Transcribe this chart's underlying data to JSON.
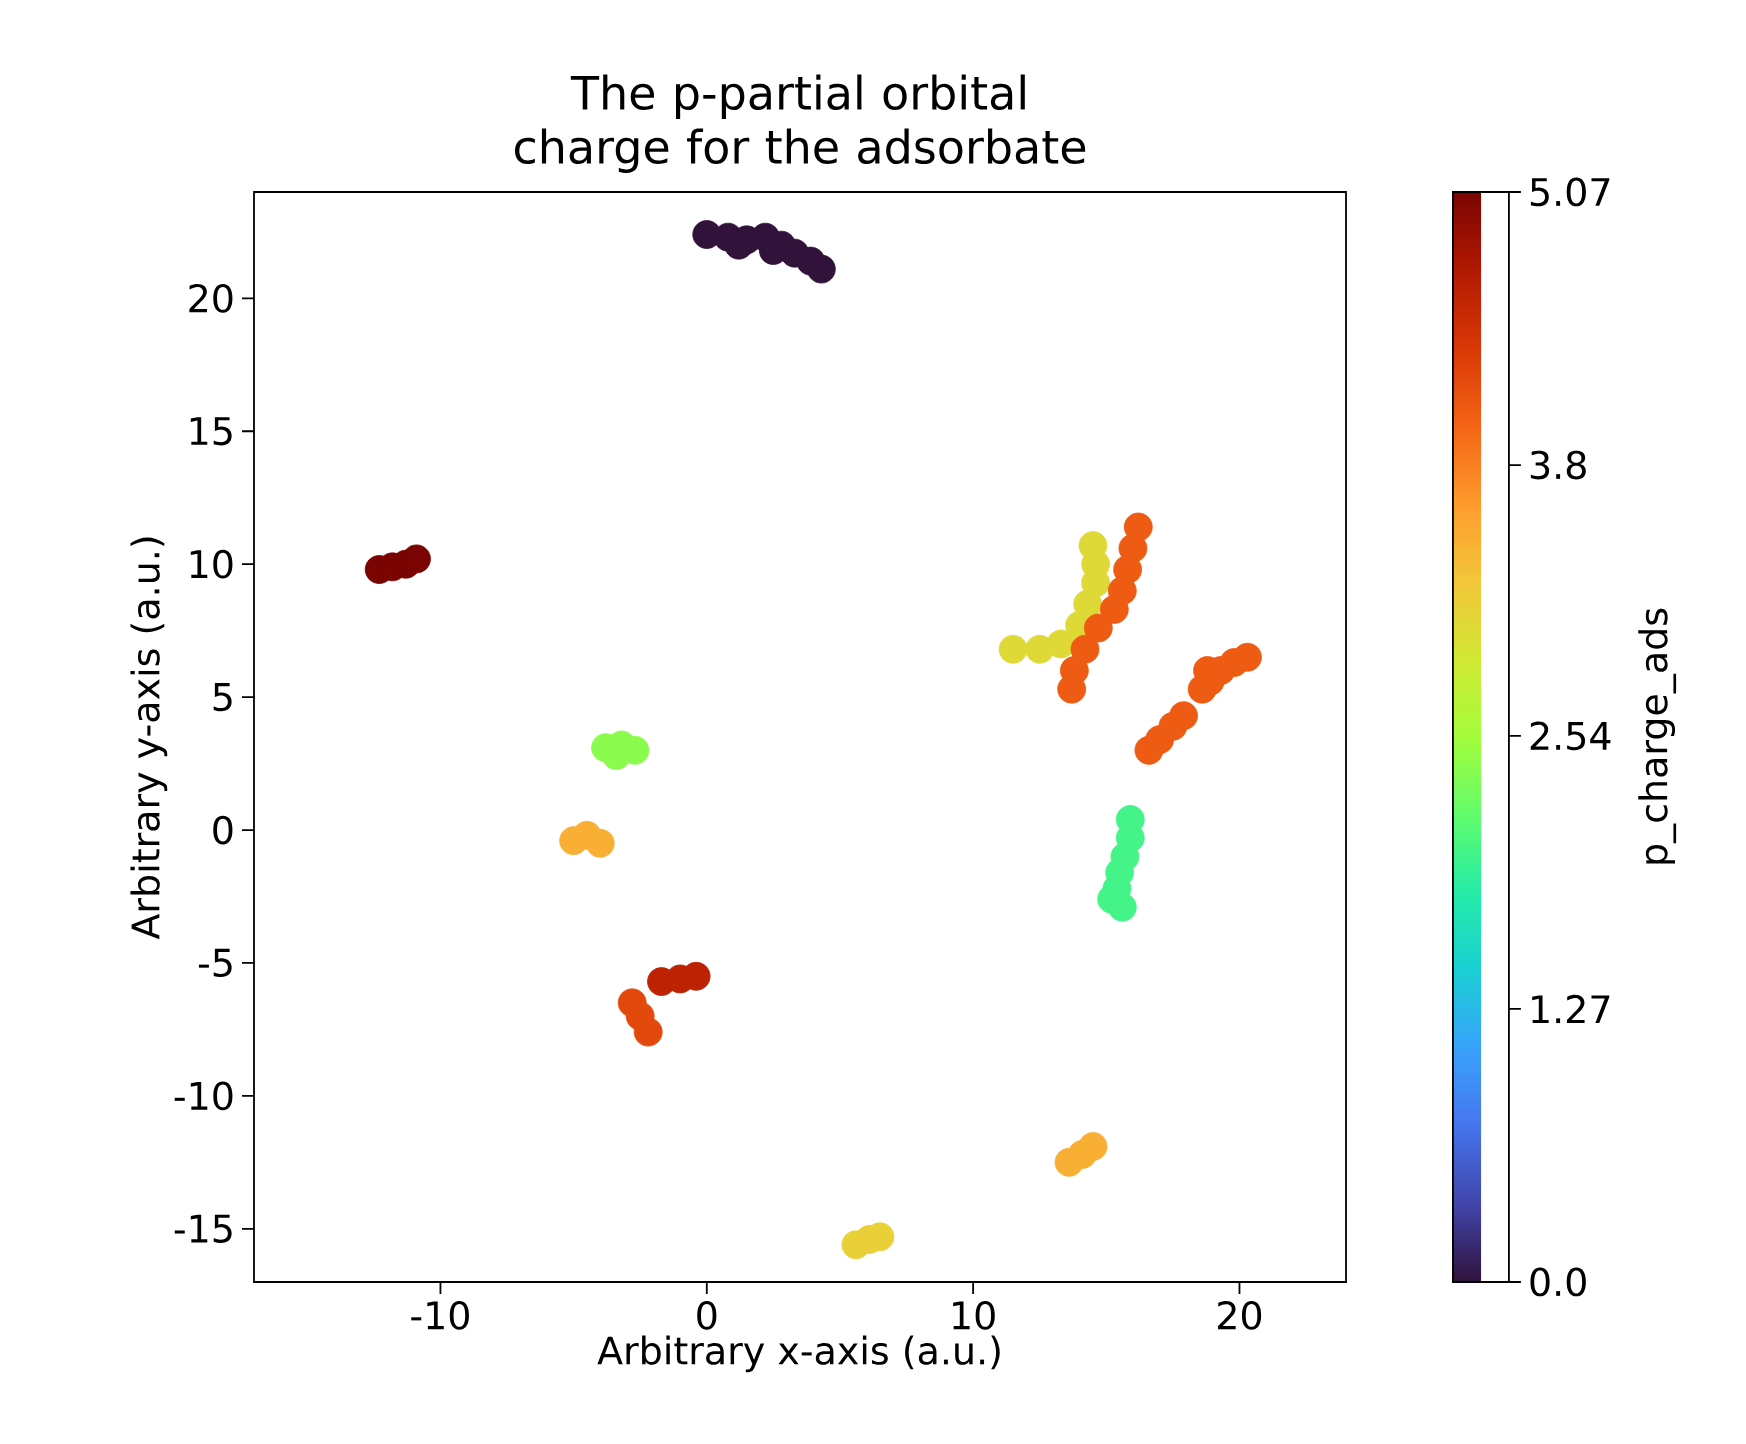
{
  "chart_data": {
    "type": "scatter",
    "title": "The p-partial orbital charge for the adsorbate",
    "xlabel": "Arbitrary x-axis (a.u.)",
    "ylabel": "Arbitrary y-axis (a.u.)",
    "clabel": "p_charge_ads",
    "x": [
      0,
      0.8,
      1.5,
      2.2,
      2.8,
      3.3,
      3.9,
      4.3,
      1.2,
      2.5,
      -12.3,
      -11.8,
      -11.3,
      -10.9,
      -3.8,
      -3.2,
      -2.7,
      -3.4,
      -5.0,
      -4.5,
      -4.0,
      -1.7,
      -1.0,
      -0.4,
      -2.8,
      -2.5,
      -2.2,
      5.6,
      6.1,
      6.5,
      13.6,
      14.1,
      14.5,
      15.9,
      15.9,
      15.7,
      15.5,
      15.4,
      15.2,
      15.6,
      11.5,
      12.5,
      13.3,
      14.0,
      14.3,
      14.6,
      14.6,
      14.5,
      13.7,
      13.8,
      14.2,
      14.7,
      15.3,
      15.6,
      15.8,
      16.0,
      16.2,
      18.6,
      18.8,
      19.3,
      19.8,
      20.3,
      18.9,
      16.6,
      17.0,
      17.5,
      17.9
    ],
    "values": [
      22.4,
      22.3,
      22.2,
      22.3,
      22.0,
      21.7,
      21.4,
      21.1,
      22.0,
      21.8,
      9.8,
      9.9,
      10.0,
      10.2,
      3.1,
      3.2,
      3.0,
      2.8,
      -0.4,
      -0.2,
      -0.5,
      -5.7,
      -5.6,
      -5.5,
      -6.5,
      -7.0,
      -7.6,
      -15.6,
      -15.4,
      -15.3,
      -12.5,
      -12.2,
      -11.9,
      0.4,
      -0.3,
      -1.0,
      -1.6,
      -2.2,
      -2.6,
      -2.9,
      6.8,
      6.8,
      7.0,
      7.7,
      8.5,
      9.3,
      10.0,
      10.7,
      5.3,
      6.0,
      6.8,
      7.6,
      8.3,
      9.0,
      9.8,
      10.6,
      11.4,
      5.3,
      6.0,
      6.0,
      6.3,
      6.5,
      5.6,
      3.0,
      3.4,
      3.9,
      4.3
    ],
    "cvalues": [
      0.0,
      0.0,
      0.0,
      0.0,
      0.0,
      0.0,
      0.0,
      0.0,
      0.0,
      0.0,
      5.07,
      5.07,
      5.07,
      5.07,
      2.4,
      2.4,
      2.4,
      2.4,
      3.45,
      3.45,
      3.45,
      4.6,
      4.6,
      4.6,
      4.2,
      4.2,
      4.2,
      3.15,
      3.15,
      3.15,
      3.45,
      3.45,
      3.45,
      2.0,
      2.0,
      2.0,
      2.0,
      2.0,
      2.0,
      2.0,
      3.05,
      3.05,
      3.05,
      3.05,
      3.05,
      3.05,
      3.05,
      3.05,
      4.05,
      4.05,
      4.05,
      4.05,
      4.05,
      4.05,
      4.05,
      4.05,
      4.05,
      4.05,
      4.05,
      4.05,
      4.05,
      4.05,
      4.05,
      4.05,
      4.05,
      4.05,
      4.05
    ],
    "xlim": [
      -17,
      24
    ],
    "ylim": [
      -17,
      24
    ],
    "xticks": [
      -10,
      0,
      10,
      20
    ],
    "yticks": [
      -15,
      -10,
      -5,
      0,
      5,
      10,
      15,
      20
    ],
    "clim": [
      0,
      5.07
    ],
    "cticks": [
      {
        "value": 0,
        "label": "0.0"
      },
      1.27,
      2.54,
      3.8,
      5.07
    ],
    "marker": "circle"
  }
}
